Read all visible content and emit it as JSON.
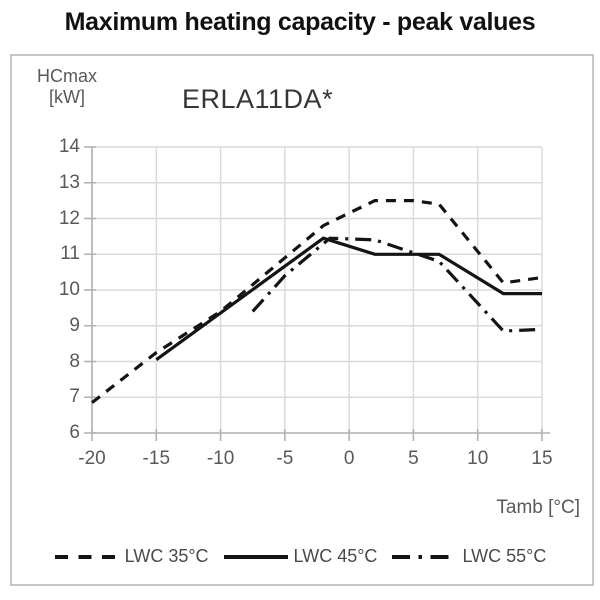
{
  "title": "Maximum heating capacity - peak values",
  "chart": {
    "model_label": "ERLA11DA*",
    "y_axis_label_line1": "HCmax",
    "y_axis_label_line2": "[kW]",
    "x_axis_label": "Tamb [°C]"
  },
  "chart_data": {
    "type": "line",
    "title": "Maximum heating capacity - peak values",
    "annotation": "ERLA11DA*",
    "xlabel": "Tamb [°C]",
    "ylabel": "HCmax [kW]",
    "xlim": [
      -20,
      15
    ],
    "ylim": [
      6,
      14
    ],
    "x_ticks": [
      -20,
      -15,
      -10,
      -5,
      0,
      5,
      10,
      15
    ],
    "y_ticks": [
      14,
      13,
      12,
      11,
      10,
      9,
      8,
      7,
      6
    ],
    "grid": true,
    "legend_position": "bottom",
    "series": [
      {
        "name": "LWC 35°C",
        "style": "dashed",
        "points": [
          [
            -20,
            6.85
          ],
          [
            -15,
            8.25
          ],
          [
            -10,
            9.4
          ],
          [
            -5,
            10.9
          ],
          [
            -2,
            11.8
          ],
          [
            0,
            12.15
          ],
          [
            2,
            12.5
          ],
          [
            5,
            12.5
          ],
          [
            7,
            12.4
          ],
          [
            12,
            10.2
          ],
          [
            15,
            10.35
          ]
        ]
      },
      {
        "name": "LWC 45°C",
        "style": "solid",
        "points": [
          [
            -15,
            8.05
          ],
          [
            -2,
            11.45
          ],
          [
            2,
            11.0
          ],
          [
            7,
            11.0
          ],
          [
            12,
            9.9
          ],
          [
            15,
            9.9
          ]
        ]
      },
      {
        "name": "LWC 55°C",
        "style": "dashdot",
        "points": [
          [
            -7.5,
            9.4
          ],
          [
            -5,
            10.4
          ],
          [
            -1.5,
            11.45
          ],
          [
            2,
            11.4
          ],
          [
            7,
            10.8
          ],
          [
            12,
            8.85
          ],
          [
            15,
            8.9
          ]
        ]
      }
    ]
  },
  "colors": {
    "line": "#141414",
    "grid": "#d9d9d9",
    "axis": "#b3b3b3",
    "tick_text": "#595959",
    "title_text": "#111111"
  }
}
